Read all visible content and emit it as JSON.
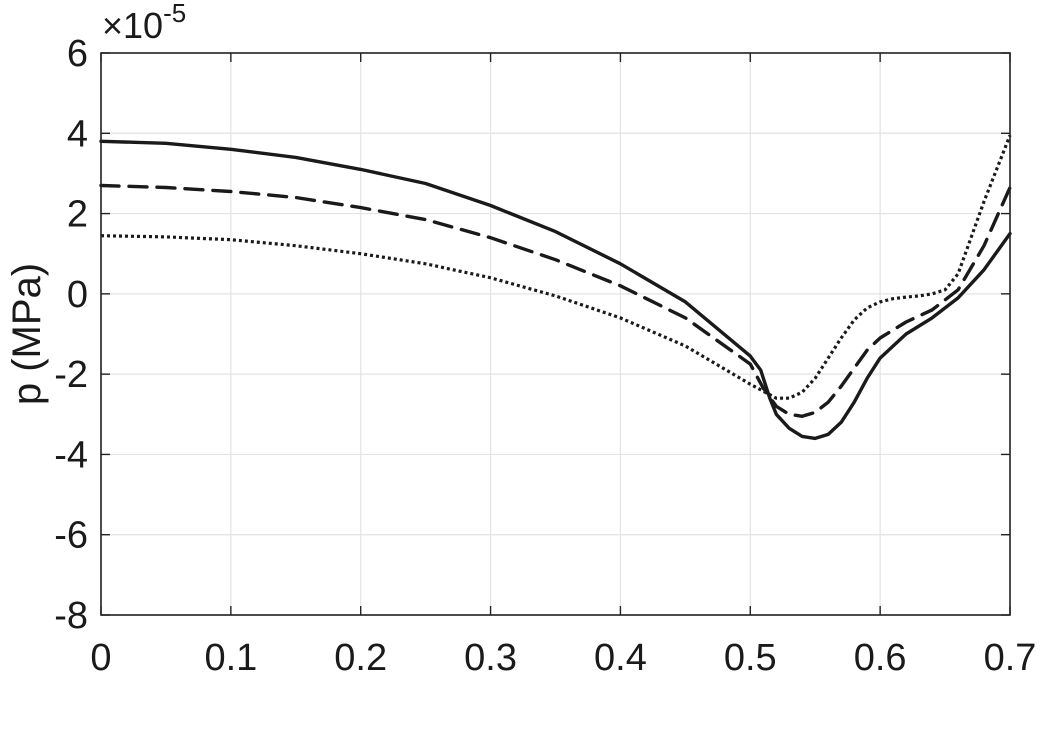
{
  "chart_data": {
    "type": "line",
    "title": "",
    "xlabel": "",
    "ylabel": "p (MPa)",
    "y_exponent_label": "×10",
    "y_exponent_power": "-5",
    "xlim": [
      0,
      0.7
    ],
    "ylim": [
      -8,
      6
    ],
    "x_ticks": [
      0,
      0.1,
      0.2,
      0.3,
      0.4,
      0.5,
      0.6,
      0.7
    ],
    "x_tick_labels": [
      "0",
      "0.1",
      "0.2",
      "0.3",
      "0.4",
      "0.5",
      "0.6",
      "0.7"
    ],
    "y_ticks": [
      -8,
      -6,
      -4,
      -2,
      0,
      2,
      4,
      6
    ],
    "y_tick_labels": [
      "-8",
      "-6",
      "-4",
      "-2",
      "0",
      "2",
      "4",
      "6"
    ],
    "grid": true,
    "legend": "none",
    "series": [
      {
        "style": "solid",
        "color": "#1a1a1a",
        "x": [
          0,
          0.05,
          0.1,
          0.15,
          0.2,
          0.25,
          0.3,
          0.35,
          0.4,
          0.45,
          0.5,
          0.508,
          0.515,
          0.52,
          0.53,
          0.54,
          0.55,
          0.56,
          0.57,
          0.58,
          0.59,
          0.6,
          0.62,
          0.64,
          0.66,
          0.68,
          0.7
        ],
        "y": [
          3.8,
          3.75,
          3.6,
          3.4,
          3.1,
          2.75,
          2.2,
          1.55,
          0.75,
          -0.2,
          -1.55,
          -1.9,
          -2.6,
          -3.0,
          -3.35,
          -3.55,
          -3.6,
          -3.5,
          -3.2,
          -2.7,
          -2.1,
          -1.6,
          -1.0,
          -0.6,
          -0.1,
          0.6,
          1.5
        ]
      },
      {
        "style": "dashed",
        "color": "#1a1a1a",
        "x": [
          0,
          0.05,
          0.1,
          0.15,
          0.2,
          0.25,
          0.3,
          0.35,
          0.4,
          0.45,
          0.5,
          0.51,
          0.52,
          0.53,
          0.54,
          0.55,
          0.56,
          0.57,
          0.58,
          0.59,
          0.6,
          0.62,
          0.64,
          0.66,
          0.68,
          0.7
        ],
        "y": [
          2.7,
          2.65,
          2.55,
          2.4,
          2.15,
          1.85,
          1.4,
          0.85,
          0.2,
          -0.6,
          -1.75,
          -2.35,
          -2.8,
          -3.0,
          -3.05,
          -2.95,
          -2.7,
          -2.3,
          -1.85,
          -1.4,
          -1.1,
          -0.7,
          -0.4,
          0.1,
          1.2,
          2.65
        ]
      },
      {
        "style": "dotted",
        "color": "#1a1a1a",
        "x": [
          0,
          0.05,
          0.1,
          0.15,
          0.2,
          0.25,
          0.3,
          0.35,
          0.4,
          0.45,
          0.5,
          0.52,
          0.53,
          0.54,
          0.55,
          0.56,
          0.57,
          0.58,
          0.59,
          0.6,
          0.61,
          0.62,
          0.63,
          0.64,
          0.65,
          0.66,
          0.68,
          0.7
        ],
        "y": [
          1.45,
          1.42,
          1.35,
          1.2,
          1.0,
          0.75,
          0.4,
          -0.05,
          -0.6,
          -1.3,
          -2.25,
          -2.6,
          -2.6,
          -2.45,
          -2.1,
          -1.6,
          -1.1,
          -0.65,
          -0.35,
          -0.2,
          -0.12,
          -0.08,
          -0.05,
          0.0,
          0.1,
          0.5,
          2.3,
          3.95
        ]
      }
    ]
  }
}
